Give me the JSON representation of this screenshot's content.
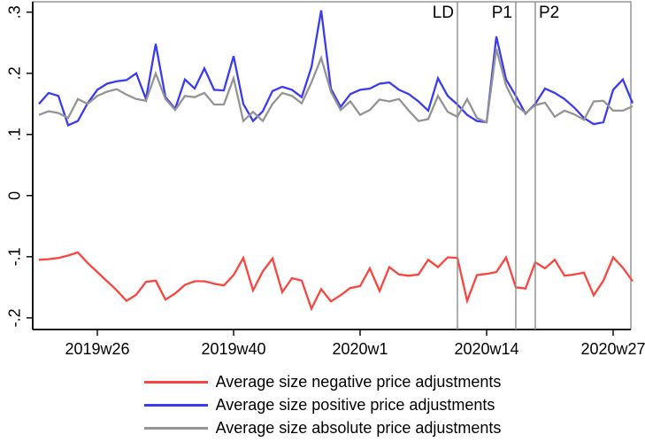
{
  "chart_data": {
    "type": "line",
    "x": [
      "2019w20",
      "2019w21",
      "2019w22",
      "2019w23",
      "2019w24",
      "2019w25",
      "2019w26",
      "2019w27",
      "2019w28",
      "2019w29",
      "2019w30",
      "2019w31",
      "2019w32",
      "2019w33",
      "2019w34",
      "2019w35",
      "2019w36",
      "2019w37",
      "2019w38",
      "2019w39",
      "2019w40",
      "2019w41",
      "2019w42",
      "2019w43",
      "2019w44",
      "2019w45",
      "2019w46",
      "2019w47",
      "2019w48",
      "2019w49",
      "2019w50",
      "2019w51",
      "2019w52",
      "2020w1",
      "2020w2",
      "2020w3",
      "2020w4",
      "2020w5",
      "2020w6",
      "2020w7",
      "2020w8",
      "2020w9",
      "2020w10",
      "2020w11",
      "2020w12",
      "2020w13",
      "2020w14",
      "2020w15",
      "2020w16",
      "2020w17",
      "2020w18",
      "2020w19",
      "2020w20",
      "2020w21",
      "2020w22",
      "2020w23",
      "2020w24",
      "2020w25",
      "2020w26",
      "2020w27",
      "2020w28",
      "2020w29"
    ],
    "series": [
      {
        "name": "Average size negative price adjustments",
        "color": "#f9453e",
        "values": [
          -0.105,
          -0.104,
          -0.102,
          -0.098,
          -0.093,
          -0.11,
          -0.125,
          -0.14,
          -0.155,
          -0.172,
          -0.162,
          -0.141,
          -0.139,
          -0.17,
          -0.16,
          -0.146,
          -0.14,
          -0.14,
          -0.144,
          -0.147,
          -0.13,
          -0.102,
          -0.155,
          -0.124,
          -0.103,
          -0.158,
          -0.135,
          -0.139,
          -0.185,
          -0.153,
          -0.173,
          -0.163,
          -0.151,
          -0.148,
          -0.119,
          -0.156,
          -0.117,
          -0.129,
          -0.131,
          -0.129,
          -0.105,
          -0.117,
          -0.101,
          -0.102,
          -0.172,
          -0.13,
          -0.128,
          -0.125,
          -0.101,
          -0.15,
          -0.152,
          -0.109,
          -0.119,
          -0.105,
          -0.131,
          -0.129,
          -0.126,
          -0.163,
          -0.139,
          -0.101,
          -0.118,
          -0.14
        ]
      },
      {
        "name": "Average size positive price adjustments",
        "color": "#3b3bf0",
        "values": [
          0.15,
          0.168,
          0.163,
          0.115,
          0.122,
          0.151,
          0.173,
          0.183,
          0.187,
          0.189,
          0.2,
          0.158,
          0.248,
          0.161,
          0.142,
          0.19,
          0.175,
          0.208,
          0.173,
          0.172,
          0.228,
          0.15,
          0.122,
          0.138,
          0.171,
          0.178,
          0.173,
          0.161,
          0.21,
          0.303,
          0.175,
          0.145,
          0.166,
          0.173,
          0.175,
          0.183,
          0.185,
          0.173,
          0.166,
          0.154,
          0.139,
          0.192,
          0.163,
          0.149,
          0.132,
          0.122,
          0.12,
          0.26,
          0.19,
          0.163,
          0.134,
          0.15,
          0.175,
          0.168,
          0.158,
          0.144,
          0.127,
          0.117,
          0.12,
          0.173,
          0.19,
          0.151
        ]
      },
      {
        "name": "Average size absolute price adjustments",
        "color": "#949494",
        "values": [
          0.132,
          0.138,
          0.135,
          0.127,
          0.158,
          0.15,
          0.163,
          0.17,
          0.174,
          0.165,
          0.158,
          0.155,
          0.2,
          0.158,
          0.14,
          0.163,
          0.161,
          0.168,
          0.149,
          0.149,
          0.192,
          0.122,
          0.137,
          0.122,
          0.15,
          0.168,
          0.163,
          0.151,
          0.185,
          0.225,
          0.17,
          0.14,
          0.154,
          0.132,
          0.14,
          0.157,
          0.154,
          0.158,
          0.139,
          0.122,
          0.125,
          0.163,
          0.137,
          0.129,
          0.158,
          0.127,
          0.12,
          0.24,
          0.18,
          0.148,
          0.135,
          0.148,
          0.152,
          0.129,
          0.139,
          0.133,
          0.124,
          0.154,
          0.155,
          0.139,
          0.139,
          0.146
        ]
      }
    ],
    "y_ticks": [
      {
        "value": -0.2,
        "label": "-.2"
      },
      {
        "value": -0.1,
        "label": "-.1"
      },
      {
        "value": 0,
        "label": "0"
      },
      {
        "value": 0.1,
        "label": ".1"
      },
      {
        "value": 0.2,
        "label": ".2"
      },
      {
        "value": 0.3,
        "label": ".3"
      }
    ],
    "x_ticks": [
      {
        "index": 6,
        "label": "2019w26"
      },
      {
        "index": 20,
        "label": "2019w40"
      },
      {
        "index": 33,
        "label": "2020w1"
      },
      {
        "index": 46,
        "label": "2020w14"
      },
      {
        "index": 59,
        "label": "2020w27"
      }
    ],
    "reference_lines": [
      {
        "label": "LD",
        "index": 43,
        "week": "2020w11",
        "label_side": "left",
        "color": "#8c8c8c"
      },
      {
        "label": "P1",
        "index": 49,
        "week": "2020w17",
        "label_side": "left",
        "color": "#8c8c8c"
      },
      {
        "label": "P2",
        "index": 51,
        "week": "2020w19",
        "label_side": "right",
        "color": "#8c8c8c"
      }
    ],
    "ylim": [
      -0.219,
      0.317
    ],
    "xlim_index": [
      -0.64,
      60.82
    ],
    "grid": false,
    "legend_position": "bottom",
    "title": "",
    "xlabel": "",
    "ylabel": ""
  }
}
